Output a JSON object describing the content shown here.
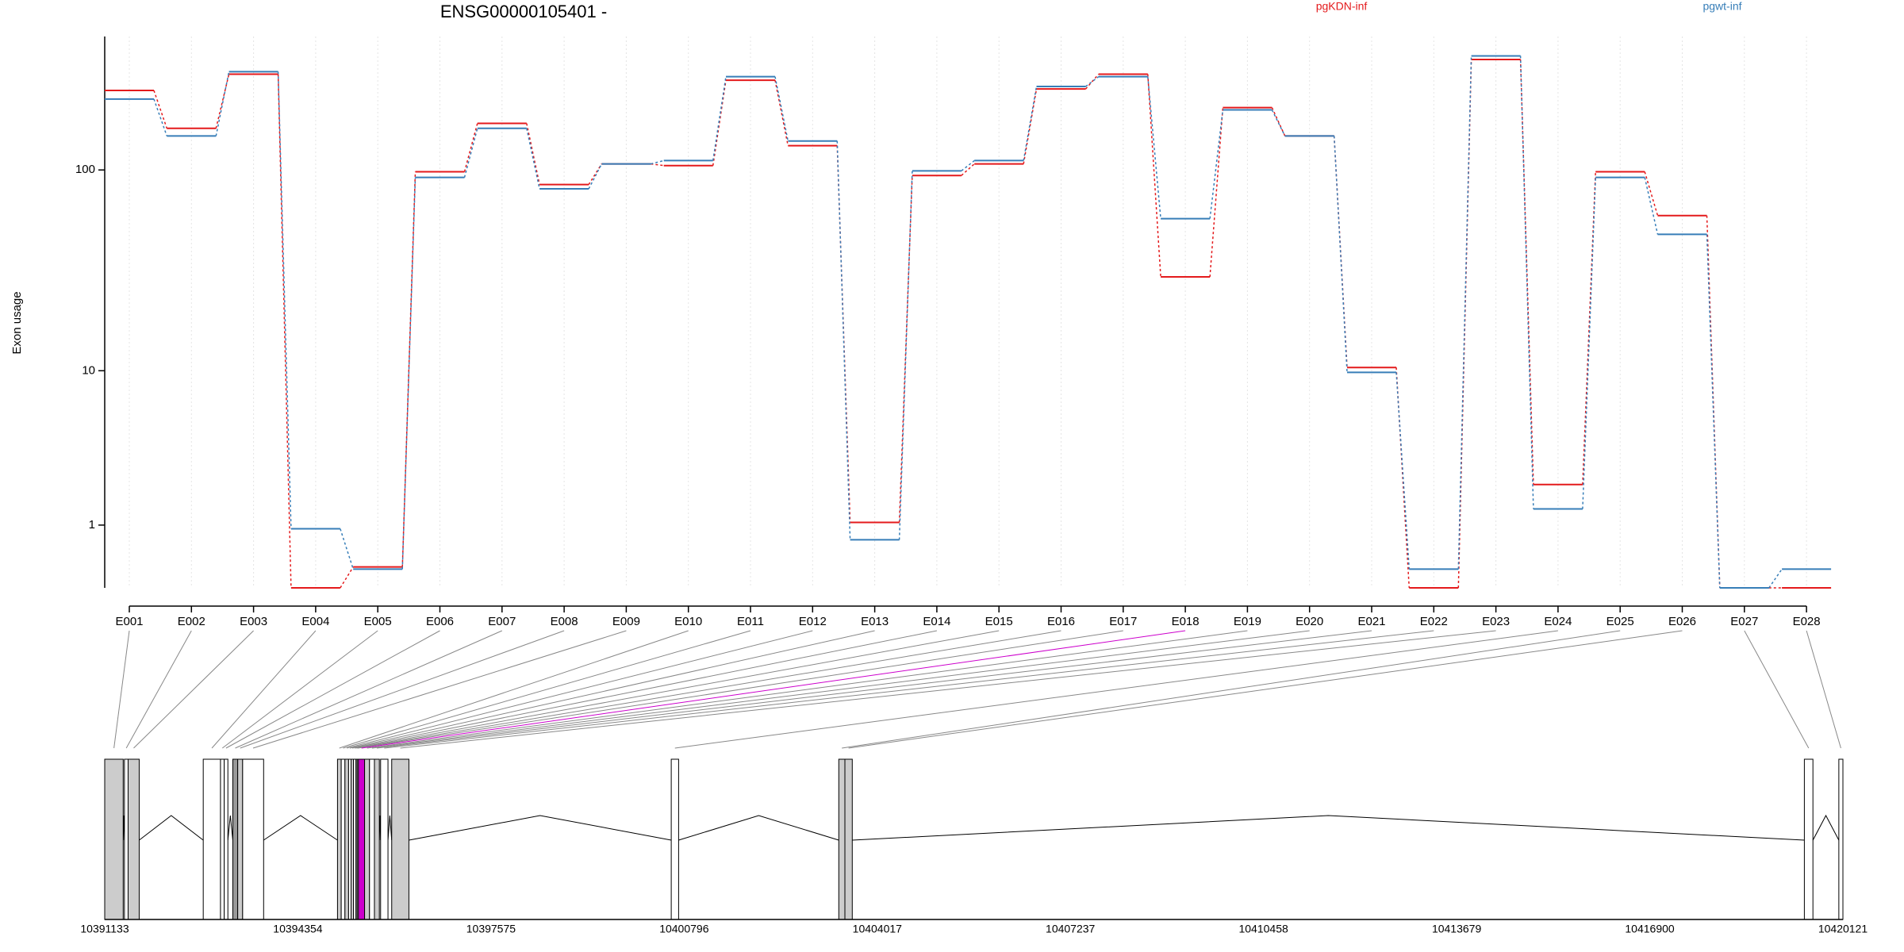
{
  "chart_data": {
    "type": "exon_usage",
    "title": "ENSG00000105401 -",
    "y_label": "Exon usage",
    "scale": "log1p",
    "grid": true,
    "categories": [
      "E001",
      "E002",
      "E003",
      "E004",
      "E005",
      "E006",
      "E007",
      "E008",
      "E009",
      "E010",
      "E011",
      "E012",
      "E013",
      "E014",
      "E015",
      "E016",
      "E017",
      "E018",
      "E019",
      "E020",
      "E021",
      "E022",
      "E023",
      "E024",
      "E025",
      "E026",
      "E027",
      "E028"
    ],
    "series": [
      {
        "name": "pgKDN-inf",
        "color": "#e41a1c",
        "values": [
          242,
          159,
          290,
          0,
          0.26,
          98,
          168,
          85,
          107,
          105,
          271,
          131,
          1.06,
          94,
          107,
          246,
          290,
          30,
          200,
          146,
          10.4,
          0,
          341,
          2.13,
          98,
          60,
          0,
          0
        ]
      },
      {
        "name": "pgwt-inf",
        "color": "#377eb8",
        "values": [
          220,
          146,
          298,
          0.92,
          0.23,
          92,
          159,
          81,
          107,
          111,
          282,
          138,
          0.7,
          99,
          111,
          253,
          282,
          58,
          195,
          146,
          9.8,
          0.23,
          355,
          1.39,
          92,
          48.6,
          0,
          0.23
        ]
      }
    ],
    "ylim": [
      0,
      440
    ],
    "yticks": [
      1,
      10,
      100
    ],
    "gene_model": {
      "xlim": [
        10391133,
        10420121
      ],
      "xticks": [
        10391133,
        10394354,
        10397575,
        10400796,
        10404017,
        10407237,
        10410458,
        10413679,
        10416900,
        10420121
      ],
      "exons": [
        {
          "start": 10391133,
          "end": 10391441,
          "color": "#cccccc",
          "significant": false
        },
        {
          "start": 10391462,
          "end": 10391523,
          "color": "#ffffff",
          "significant": false
        },
        {
          "start": 10391523,
          "end": 10391708,
          "color": "#cccccc",
          "significant": false
        },
        {
          "start": 10392776,
          "end": 10393064,
          "color": "#ffffff",
          "significant": false
        },
        {
          "start": 10393064,
          "end": 10393126,
          "color": "#ffffff",
          "significant": false
        },
        {
          "start": 10393126,
          "end": 10393187,
          "color": "#ffffff",
          "significant": false
        },
        {
          "start": 10393269,
          "end": 10393351,
          "color": "#999999",
          "significant": false
        },
        {
          "start": 10393351,
          "end": 10393433,
          "color": "#cccccc",
          "significant": false
        },
        {
          "start": 10393433,
          "end": 10393783,
          "color": "#ffffff",
          "significant": false
        },
        {
          "start": 10395015,
          "end": 10395077,
          "color": "#cccccc",
          "significant": false
        },
        {
          "start": 10395077,
          "end": 10395139,
          "color": "#ffffff",
          "significant": false
        },
        {
          "start": 10395139,
          "end": 10395200,
          "color": "#cccccc",
          "significant": false
        },
        {
          "start": 10395200,
          "end": 10395241,
          "color": "#ffffff",
          "significant": false
        },
        {
          "start": 10395241,
          "end": 10395282,
          "color": "#cccccc",
          "significant": false
        },
        {
          "start": 10395282,
          "end": 10395323,
          "color": "#ffffff",
          "significant": false
        },
        {
          "start": 10395323,
          "end": 10395344,
          "color": "#cccccc",
          "significant": false
        },
        {
          "start": 10395344,
          "end": 10395364,
          "color": "#ffffff",
          "significant": false
        },
        {
          "start": 10395364,
          "end": 10395467,
          "color": "#cc00cc",
          "significant": true
        },
        {
          "start": 10395467,
          "end": 10395549,
          "color": "#cccccc",
          "significant": false
        },
        {
          "start": 10395549,
          "end": 10395631,
          "color": "#ffffff",
          "significant": false
        },
        {
          "start": 10395631,
          "end": 10395713,
          "color": "#cccccc",
          "significant": false
        },
        {
          "start": 10395734,
          "end": 10395857,
          "color": "#ffffff",
          "significant": false
        },
        {
          "start": 10395919,
          "end": 10396206,
          "color": "#cccccc",
          "significant": false
        },
        {
          "start": 10400581,
          "end": 10400704,
          "color": "#ffffff",
          "significant": false
        },
        {
          "start": 10403375,
          "end": 10403477,
          "color": "#cccccc",
          "significant": false
        },
        {
          "start": 10403477,
          "end": 10403600,
          "color": "#cccccc",
          "significant": false
        },
        {
          "start": 10419478,
          "end": 10419621,
          "color": "#ffffff",
          "significant": false
        },
        {
          "start": 10420053,
          "end": 10420121,
          "color": "#ffffff",
          "significant": false
        }
      ]
    }
  }
}
